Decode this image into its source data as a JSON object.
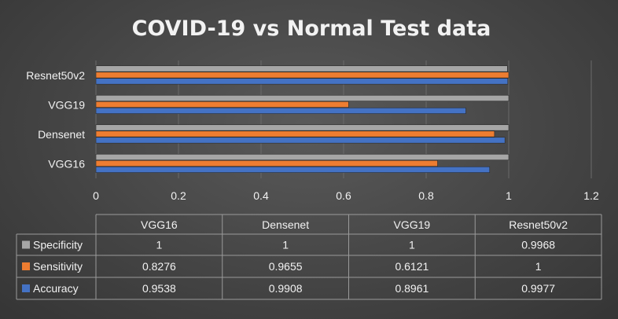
{
  "chart_data": {
    "type": "bar",
    "orientation": "horizontal",
    "title": "COVID-19 vs Normal Test data",
    "categories": [
      "VGG16",
      "Densenet",
      "VGG19",
      "Resnet50v2"
    ],
    "series": [
      {
        "name": "Specificity",
        "color": "#a6a6a6",
        "values": [
          1,
          1,
          1,
          0.9968
        ],
        "labels": [
          "1",
          "1",
          "1",
          "0.9968"
        ]
      },
      {
        "name": "Sensitivity",
        "color": "#ed7d31",
        "values": [
          0.8276,
          0.9655,
          0.6121,
          1
        ],
        "labels": [
          "0.8276",
          "0.9655",
          "0.6121",
          "1"
        ]
      },
      {
        "name": "Accuracy",
        "color": "#4472c4",
        "values": [
          0.9538,
          0.9908,
          0.8961,
          0.9977
        ],
        "labels": [
          "0.9538",
          "0.9908",
          "0.8961",
          "0.9977"
        ]
      }
    ],
    "xlim": [
      0,
      1.2
    ],
    "xticks": [
      "0",
      "0.2",
      "0.4",
      "0.6",
      "0.8",
      "1",
      "1.2"
    ],
    "grid": true,
    "legend": "data-table"
  }
}
